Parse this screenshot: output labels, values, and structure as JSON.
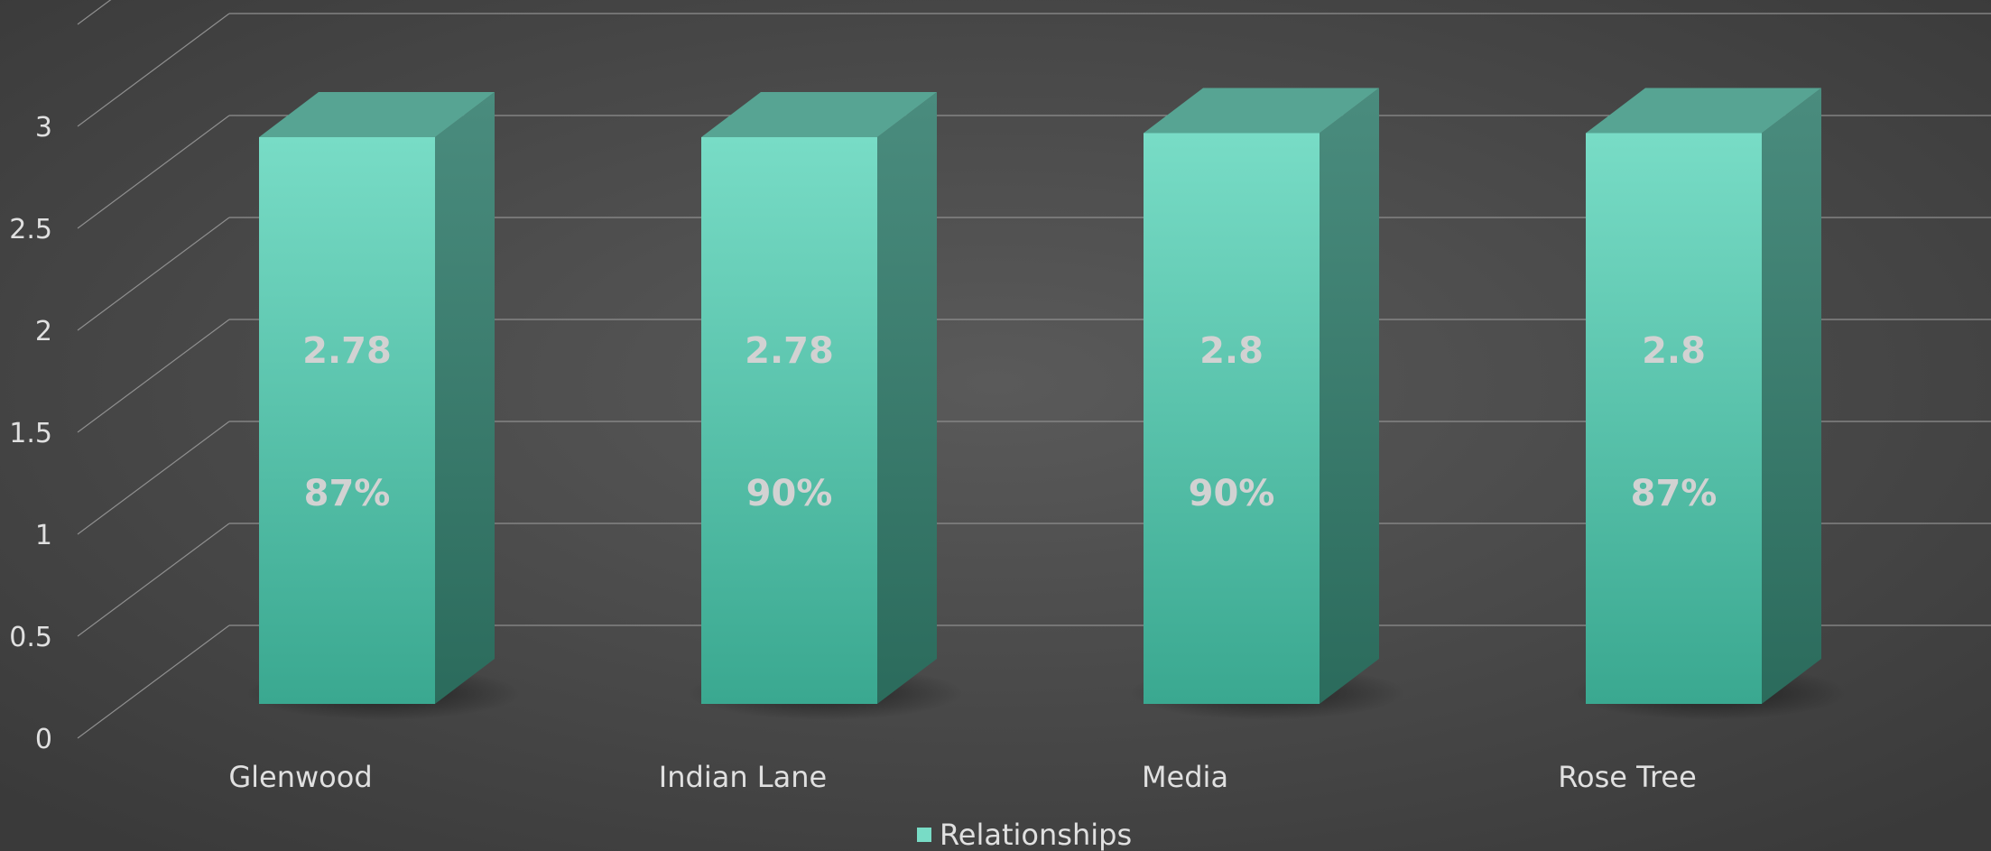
{
  "chart_data": {
    "type": "bar",
    "categories": [
      "Glenwood",
      "Indian Lane",
      "Media",
      "Rose Tree"
    ],
    "series": [
      {
        "name": "Relationships",
        "values": [
          2.78,
          2.78,
          2.8,
          2.8
        ]
      }
    ],
    "percent_labels": [
      "87%",
      "90%",
      "90%",
      "87%"
    ],
    "ylim": [
      0,
      3.5
    ],
    "y_ticks": [
      "0",
      "0.5",
      "1",
      "1.5",
      "2",
      "2.5",
      "3"
    ],
    "grid": true,
    "legend_position": "bottom",
    "style": "3d-column",
    "colors": {
      "bar_front_top": "#78dcc6",
      "bar_front_bottom": "#3aa890",
      "bar_top": "#57a493",
      "bar_side_top": "#4a8c7e",
      "bar_side_bottom": "#2b6b5c",
      "label": "#d2d2d2",
      "text": "#e0e0e0",
      "grid": "#8f8f8f",
      "background_center": "#5a5a5a",
      "background_edge": "#3a3a3a"
    }
  }
}
